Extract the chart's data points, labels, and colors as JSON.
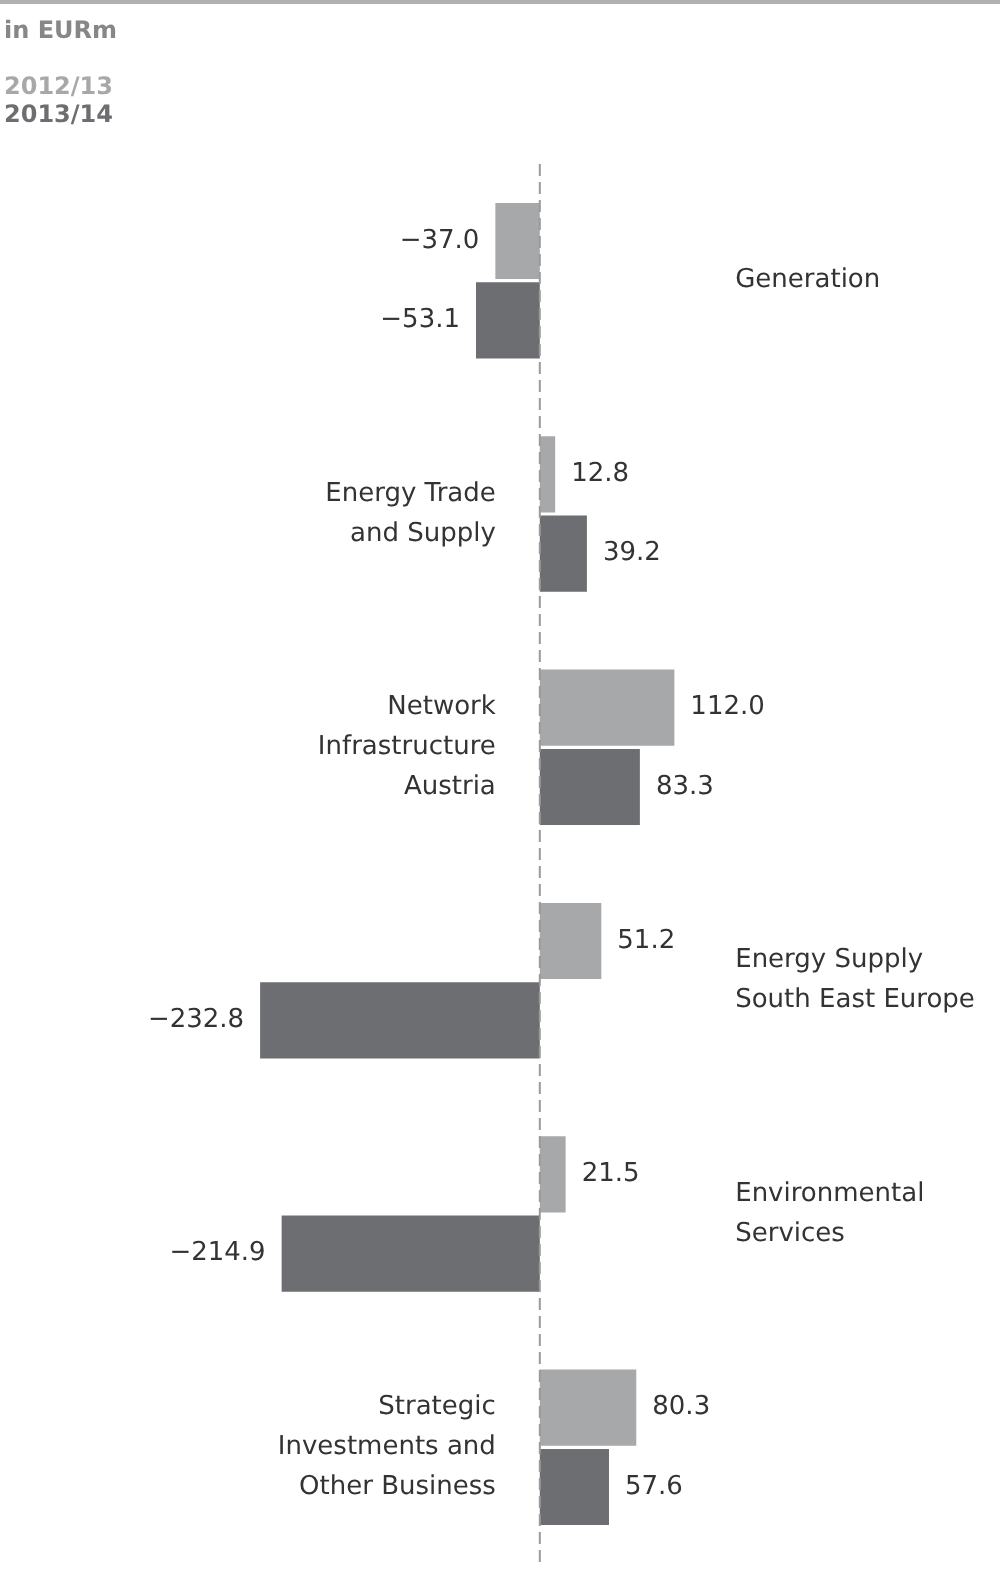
{
  "chart_data": {
    "type": "bar",
    "orientation": "horizontal",
    "subtitle": "in EURm",
    "legend": "top left",
    "ref_lines": [
      {
        "axis": "x",
        "value": 0,
        "color": "#9a9a9a",
        "line_style": "dashed"
      }
    ],
    "categories": [
      "Generation",
      "Energy Trade and Supply",
      "Network Infrastructure Austria",
      "Energy Supply South East Europe",
      "Environmental Services",
      "Strategic Investments and Other Business"
    ],
    "series": [
      {
        "name": "2012/13",
        "color": "#a7a8aa",
        "values": [
          -37.0,
          12.8,
          112.0,
          51.2,
          21.5,
          80.3
        ],
        "value_labels": [
          "−37.0",
          "12.8",
          "112.0",
          "51.2",
          "21.5",
          "80.3"
        ]
      },
      {
        "name": "2013/14",
        "color": "#6d6e71",
        "values": [
          -53.1,
          39.2,
          83.3,
          -232.8,
          -214.9,
          57.6
        ],
        "value_labels": [
          "−53.1",
          "39.2",
          "83.3",
          "−232.8",
          "−214.9",
          "57.6"
        ]
      }
    ]
  }
}
